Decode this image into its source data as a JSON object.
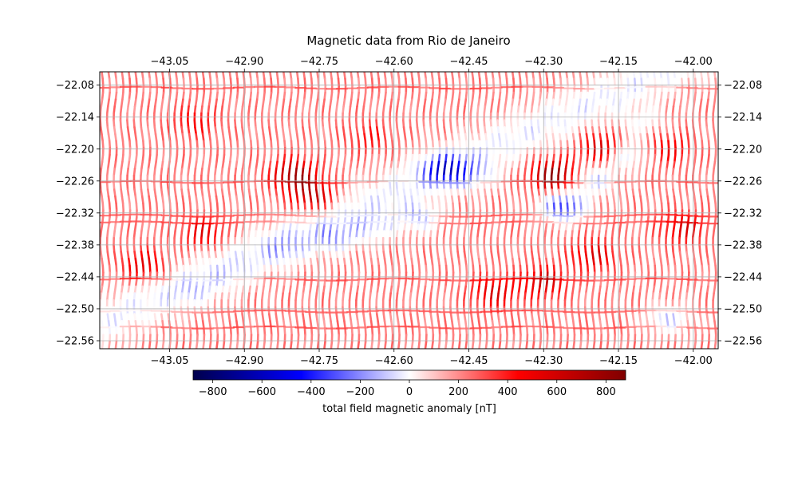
{
  "chart_data": {
    "type": "scatter",
    "title": "Magnetic data from Rio de Janeiro",
    "xlabel": "",
    "ylabel": "",
    "xlim": [
      -43.19,
      -41.95
    ],
    "ylim": [
      -22.575,
      -22.055
    ],
    "x_ticks": [
      -43.05,
      -42.9,
      -42.75,
      -42.6,
      -42.45,
      -42.3,
      -42.15,
      -42.0
    ],
    "y_ticks": [
      -22.08,
      -22.14,
      -22.2,
      -22.26,
      -22.32,
      -22.38,
      -22.44,
      -22.5,
      -22.56
    ],
    "x_tick_labels": [
      "−43.05",
      "−42.90",
      "−42.75",
      "−42.60",
      "−42.45",
      "−42.30",
      "−42.15",
      "−42.00"
    ],
    "y_tick_labels": [
      "−22.08",
      "−22.14",
      "−22.20",
      "−22.26",
      "−22.32",
      "−22.38",
      "−22.44",
      "−22.50",
      "−22.56"
    ],
    "grid": true,
    "colormap": "seismic",
    "colorbar": {
      "label": "total field magnetic anomaly [nT]",
      "vmin": -880,
      "vmax": 880,
      "ticks": [
        -800,
        -600,
        -400,
        -200,
        0,
        200,
        400,
        600,
        800
      ],
      "tick_labels": [
        "−800",
        "−600",
        "−400",
        "−200",
        "0",
        "200",
        "400",
        "600",
        "800"
      ],
      "colors": [
        "#00004c",
        "#0000ff",
        "#ffffff",
        "#ff0000",
        "#800000"
      ]
    },
    "flight_lines": {
      "direction": "north-south",
      "spacing_deg": 0.0135,
      "tie_line_latitudes": [
        -22.085,
        -22.262,
        -22.325,
        -22.338,
        -22.445,
        -22.505,
        -22.535
      ]
    },
    "anomaly_features": [
      {
        "lon": -43.0,
        "lat": -22.47,
        "value": -150
      },
      {
        "lon": -42.92,
        "lat": -22.44,
        "value": -120
      },
      {
        "lon": -42.82,
        "lat": -22.39,
        "value": -250
      },
      {
        "lon": -42.72,
        "lat": -22.37,
        "value": -350
      },
      {
        "lon": -42.64,
        "lat": -22.35,
        "value": -300
      },
      {
        "lon": -42.55,
        "lat": -22.33,
        "value": -400
      },
      {
        "lon": -42.5,
        "lat": -22.24,
        "value": -700
      },
      {
        "lon": -42.44,
        "lat": -22.25,
        "value": -300
      },
      {
        "lon": -42.26,
        "lat": -22.31,
        "value": -750
      },
      {
        "lon": -42.2,
        "lat": -22.26,
        "value": -400
      },
      {
        "lon": -42.14,
        "lat": -22.21,
        "value": -500
      },
      {
        "lon": -42.1,
        "lat": -22.15,
        "value": -250
      },
      {
        "lon": -42.05,
        "lat": -22.52,
        "value": -400
      },
      {
        "lon": -42.8,
        "lat": -22.25,
        "value": 700
      },
      {
        "lon": -42.76,
        "lat": -22.29,
        "value": 600
      },
      {
        "lon": -42.28,
        "lat": -22.25,
        "value": 800
      },
      {
        "lon": -42.18,
        "lat": -22.2,
        "value": 650
      },
      {
        "lon": -43.1,
        "lat": -22.42,
        "value": 450
      },
      {
        "lon": -42.98,
        "lat": -22.36,
        "value": 400
      },
      {
        "lon": -42.4,
        "lat": -22.47,
        "value": 450
      },
      {
        "lon": -42.3,
        "lat": -22.45,
        "value": 500
      },
      {
        "lon": -42.2,
        "lat": -22.4,
        "value": 450
      },
      {
        "lon": -42.02,
        "lat": -22.35,
        "value": 420
      },
      {
        "lon": -42.05,
        "lat": -22.2,
        "value": 350
      },
      {
        "lon": -43.0,
        "lat": -22.15,
        "value": 300
      },
      {
        "lon": -42.65,
        "lat": -22.18,
        "value": 250
      }
    ]
  }
}
